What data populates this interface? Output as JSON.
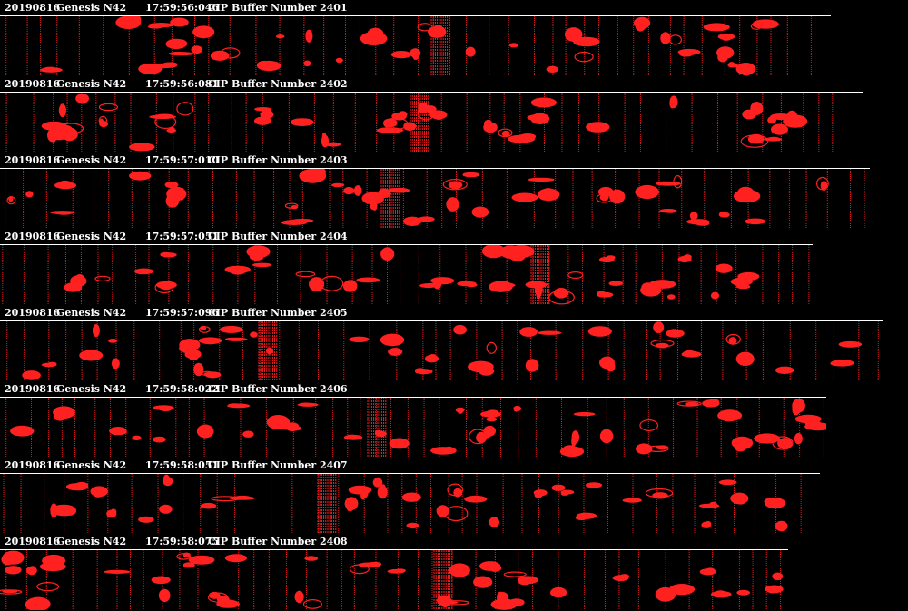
{
  "colors": {
    "background": "#000000",
    "particle": "#ff2020",
    "text": "#ffffff"
  },
  "buffers": [
    {
      "date": "20190816",
      "probe": "Genesis N42",
      "time": "17:59:56:046",
      "buffer": "CIP Buffer Number 2401"
    },
    {
      "date": "20190816",
      "probe": "Genesis N42",
      "time": "17:59:56:081",
      "buffer": "CIP Buffer Number 2402"
    },
    {
      "date": "20190816",
      "probe": "Genesis N42",
      "time": "17:59:57:010",
      "buffer": "CIP Buffer Number 2403"
    },
    {
      "date": "20190816",
      "probe": "Genesis N42",
      "time": "17:59:57:051",
      "buffer": "CIP Buffer Number 2404"
    },
    {
      "date": "20190816",
      "probe": "Genesis N42",
      "time": "17:59:57:096",
      "buffer": "CIP Buffer Number 2405"
    },
    {
      "date": "20190816",
      "probe": "Genesis N42",
      "time": "17:59:58:022",
      "buffer": "CIP Buffer Number 2406"
    },
    {
      "date": "20190816",
      "probe": "Genesis N42",
      "time": "17:59:58:051",
      "buffer": "CIP Buffer Number 2407"
    },
    {
      "date": "20190816",
      "probe": "Genesis N42",
      "time": "17:59:58:075",
      "buffer": "CIP Buffer Number 2408"
    }
  ]
}
